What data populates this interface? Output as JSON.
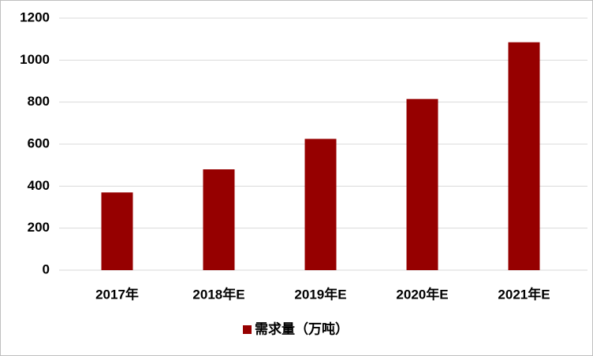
{
  "chart_data": {
    "type": "bar",
    "categories": [
      "2017年",
      "2018年E",
      "2019年E",
      "2020年E",
      "2021年E"
    ],
    "series": [
      {
        "name": "需求量（万吨）",
        "color": "#960000",
        "values": [
          370,
          480,
          625,
          815,
          1085
        ]
      }
    ],
    "ylim": [
      0,
      1200
    ],
    "yticks": [
      0,
      200,
      400,
      600,
      800,
      1000,
      1200
    ],
    "grid": true,
    "legend": "bottom"
  }
}
